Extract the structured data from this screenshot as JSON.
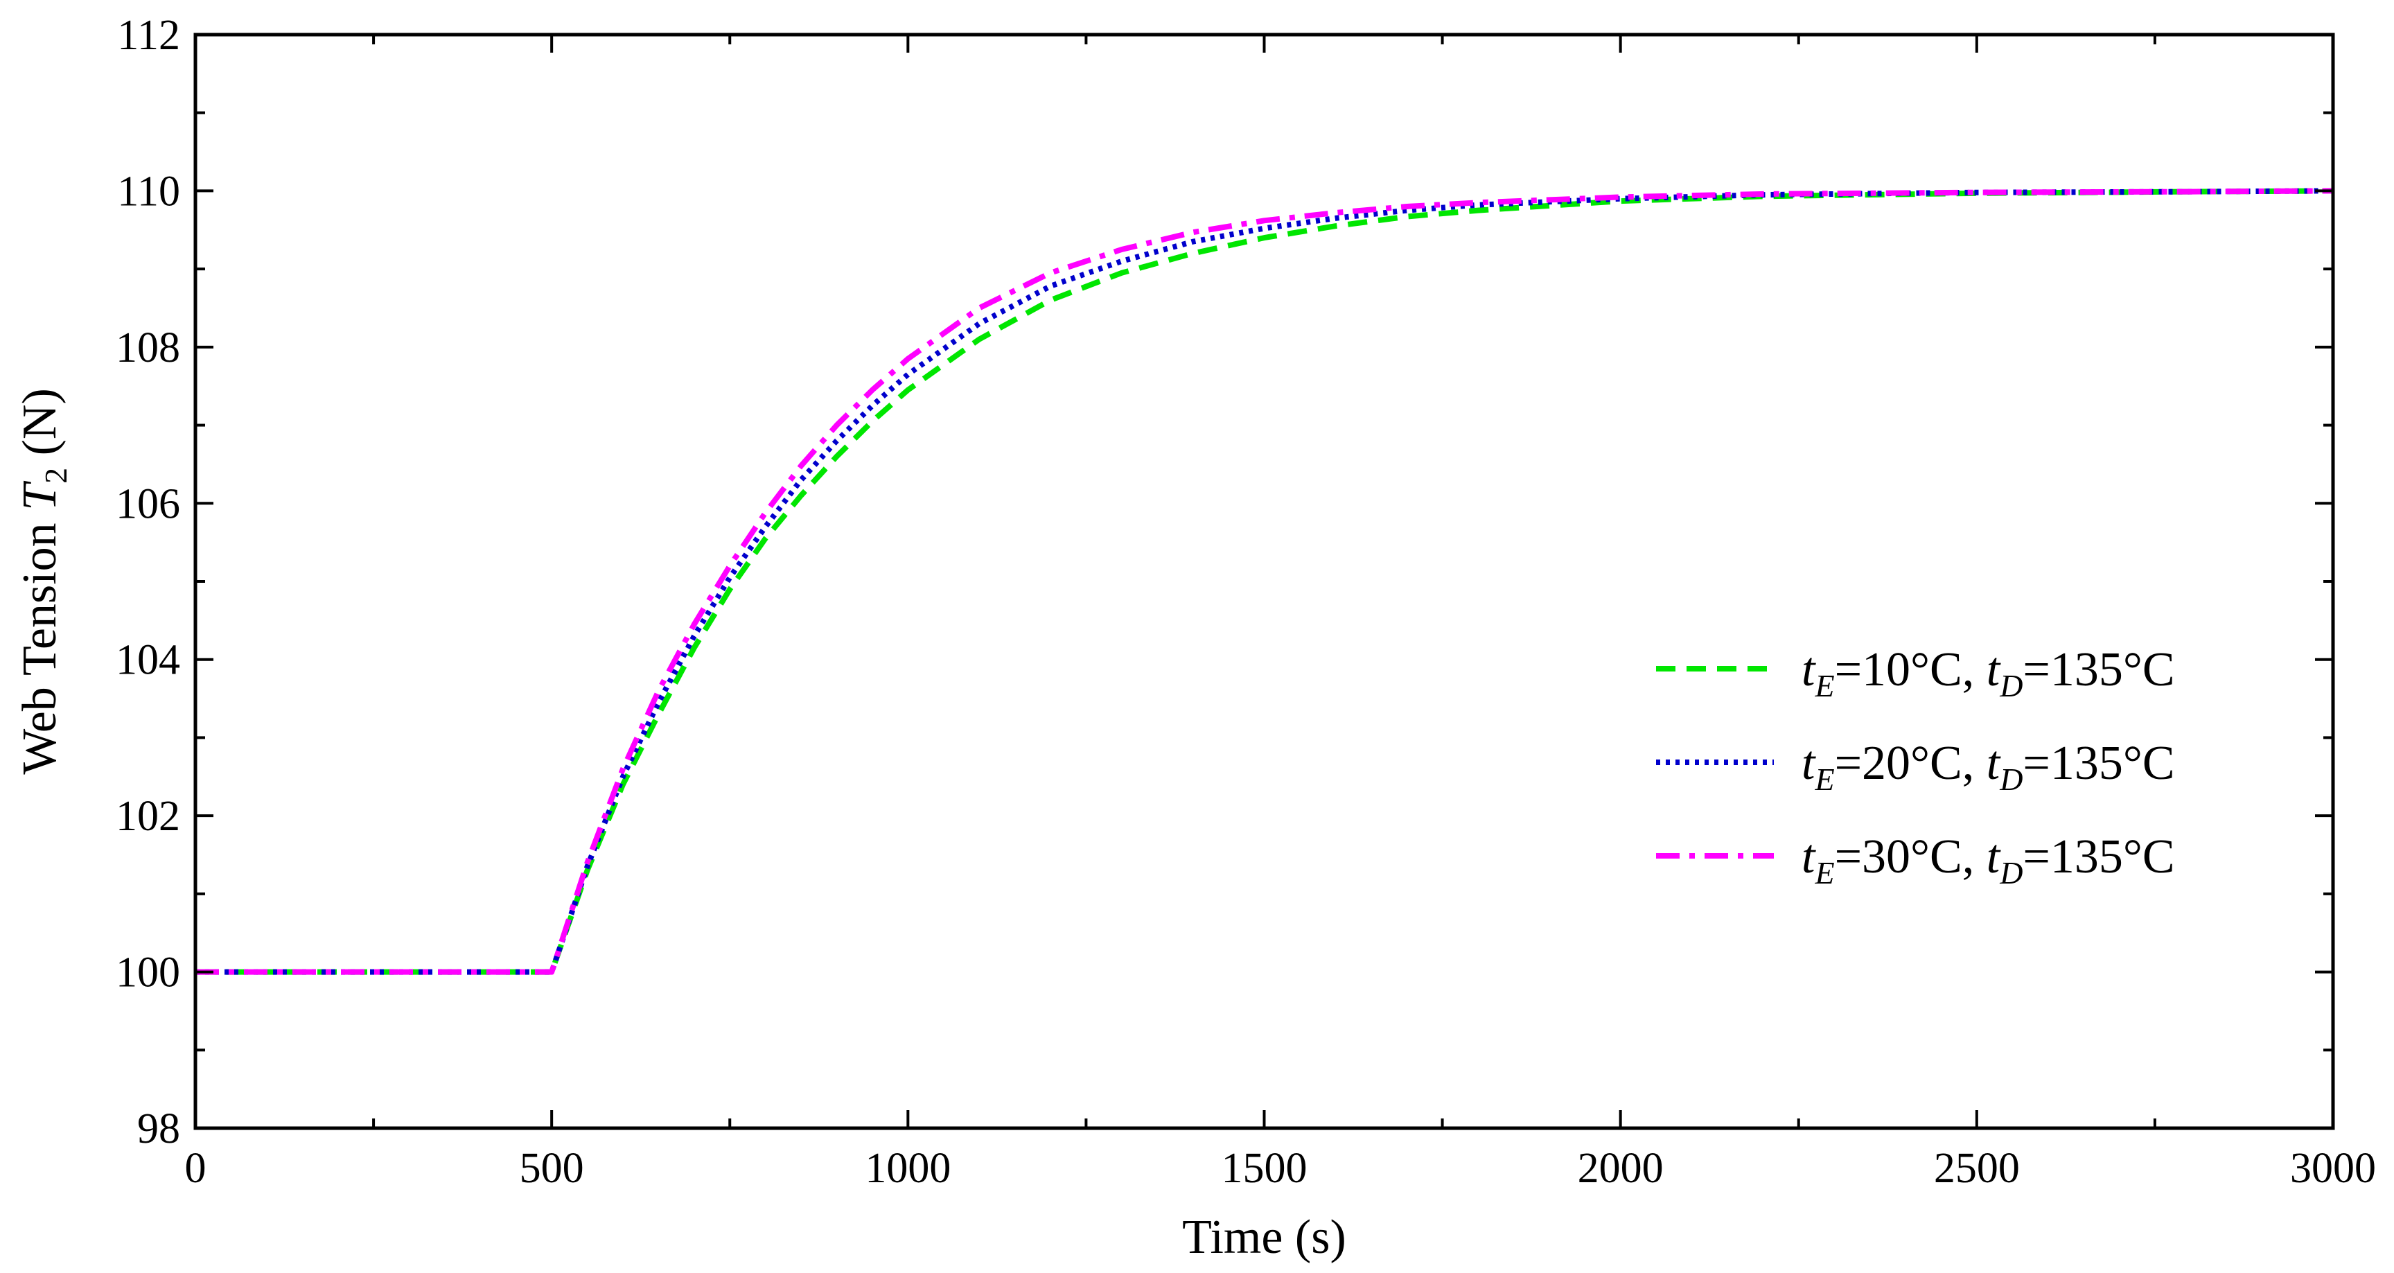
{
  "chart_data": {
    "type": "line",
    "title": "",
    "xlabel": "Time (s)",
    "ylabel": {
      "prefix": "Web Tension ",
      "var": "T",
      "sub": "2",
      "suffix": " (N)"
    },
    "xlim": [
      0,
      3000
    ],
    "ylim": [
      98,
      112
    ],
    "xticks": [
      0,
      500,
      1000,
      1500,
      2000,
      2500,
      3000
    ],
    "yticks": [
      98,
      100,
      102,
      104,
      106,
      108,
      110,
      112
    ],
    "grid": false,
    "legend_position": "right-center",
    "series": [
      {
        "name": "tE=10°C, tD=135°C",
        "label": {
          "t1": "t",
          "s1": "E",
          "m1": "=10°C, ",
          "t2": "t",
          "s2": "D",
          "m2": "=135°C"
        },
        "color": "#00e600",
        "dash": "dashed",
        "x": [
          0,
          500,
          550,
          600,
          650,
          700,
          750,
          800,
          850,
          900,
          950,
          1000,
          1100,
          1200,
          1300,
          1400,
          1500,
          1600,
          1700,
          1800,
          2000,
          2200,
          2500,
          2800,
          3000
        ],
        "y": [
          100,
          100,
          101.3,
          102.4,
          103.3,
          104.15,
          104.9,
          105.55,
          106.1,
          106.6,
          107.05,
          107.45,
          108.1,
          108.6,
          108.95,
          109.2,
          109.4,
          109.55,
          109.67,
          109.75,
          109.87,
          109.93,
          109.97,
          109.99,
          110
        ]
      },
      {
        "name": "tE=20°C, tD=135°C",
        "label": {
          "t1": "t",
          "s1": "E",
          "m1": "=20°C, ",
          "t2": "t",
          "s2": "D",
          "m2": "=135°C"
        },
        "color": "#0000cc",
        "dash": "dotted",
        "x": [
          0,
          500,
          550,
          600,
          650,
          700,
          750,
          800,
          850,
          900,
          950,
          1000,
          1100,
          1200,
          1300,
          1400,
          1500,
          1600,
          1700,
          1800,
          2000,
          2200,
          2500,
          2800,
          3000
        ],
        "y": [
          100,
          100,
          101.35,
          102.5,
          103.45,
          104.3,
          105.05,
          105.7,
          106.3,
          106.8,
          107.25,
          107.65,
          108.3,
          108.78,
          109.1,
          109.35,
          109.52,
          109.65,
          109.75,
          109.82,
          109.9,
          109.95,
          109.98,
          109.99,
          110
        ]
      },
      {
        "name": "tE=30°C, tD=135°C",
        "label": {
          "t1": "t",
          "s1": "E",
          "m1": "=30°C, ",
          "t2": "t",
          "s2": "D",
          "m2": "=135°C"
        },
        "color": "#ff00ff",
        "dash": "dashdot",
        "x": [
          0,
          500,
          550,
          600,
          650,
          700,
          750,
          800,
          850,
          900,
          950,
          1000,
          1100,
          1200,
          1300,
          1400,
          1500,
          1600,
          1700,
          1800,
          2000,
          2200,
          2500,
          2800,
          3000
        ],
        "y": [
          100,
          100,
          101.4,
          102.6,
          103.6,
          104.45,
          105.2,
          105.88,
          106.48,
          107.0,
          107.45,
          107.85,
          108.5,
          108.95,
          109.25,
          109.47,
          109.62,
          109.72,
          109.8,
          109.85,
          109.92,
          109.96,
          109.98,
          109.99,
          110
        ]
      }
    ]
  }
}
